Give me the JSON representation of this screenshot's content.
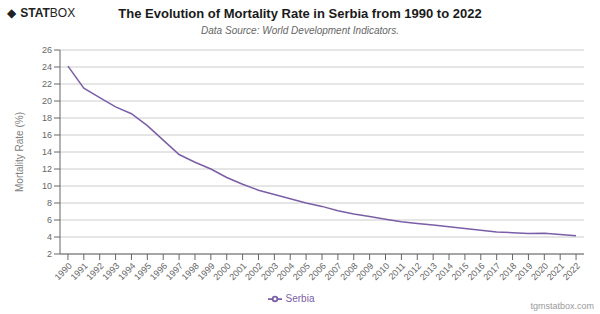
{
  "chart_data": {
    "type": "line",
    "title": "The Evolution of Mortality Rate in Serbia from 1990 to 2022",
    "subtitle": "Data Source: World Development Indicators.",
    "y_label": "Mortality Rate (%)",
    "logo": [
      "◆",
      "STAT",
      "BOX"
    ],
    "watermark": "tgmstatbox.com",
    "x": [
      1990,
      1991,
      1992,
      1993,
      1994,
      1995,
      1996,
      1997,
      1998,
      1999,
      2000,
      2001,
      2002,
      2003,
      2004,
      2005,
      2006,
      2007,
      2008,
      2009,
      2010,
      2011,
      2012,
      2013,
      2014,
      2015,
      2016,
      2017,
      2018,
      2019,
      2020,
      2021,
      2022
    ],
    "series": [
      {
        "name": "Serbia",
        "color": "#7b5ea7",
        "values": [
          24.1,
          21.5,
          20.4,
          19.3,
          18.5,
          17.1,
          15.4,
          13.7,
          12.8,
          12.0,
          11.0,
          10.2,
          9.5,
          9.0,
          8.5,
          8.0,
          7.6,
          7.1,
          6.7,
          6.4,
          6.1,
          5.8,
          5.6,
          5.4,
          5.2,
          5.0,
          4.8,
          4.6,
          4.5,
          4.4,
          4.45,
          4.3,
          4.15
        ]
      }
    ],
    "xlim": [
      1989.5,
      2022.5
    ],
    "xticks": [
      1990,
      1991,
      1992,
      1993,
      1994,
      1995,
      1996,
      1997,
      1998,
      1999,
      2000,
      2001,
      2002,
      2003,
      2004,
      2005,
      2006,
      2007,
      2008,
      2009,
      2010,
      2011,
      2012,
      2013,
      2014,
      2015,
      2016,
      2017,
      2018,
      2019,
      2020,
      2021,
      2022
    ],
    "ylim": [
      2,
      26
    ],
    "yticks": [
      2,
      4,
      6,
      8,
      10,
      12,
      14,
      16,
      18,
      20,
      22,
      24,
      26
    ],
    "grid": true,
    "legend": "bottom"
  }
}
